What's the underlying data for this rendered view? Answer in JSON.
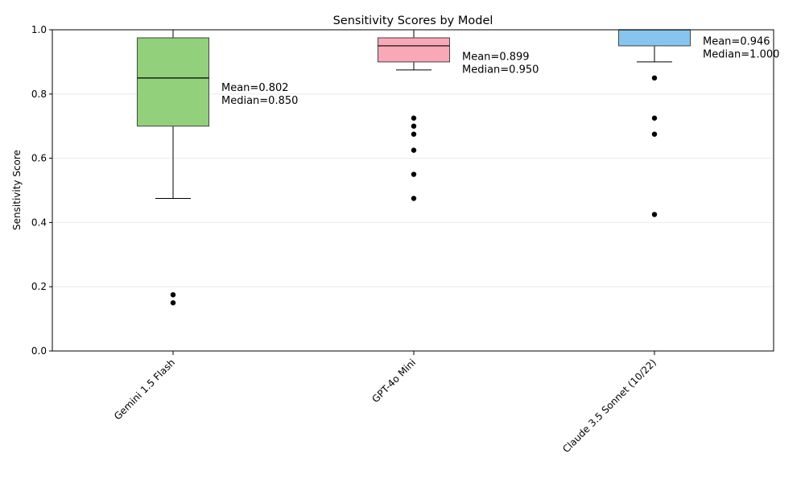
{
  "chart_data": {
    "type": "box",
    "title": "Sensitivity Scores by Model",
    "xlabel": "",
    "ylabel": "Sensitivity Score",
    "ylim": [
      0,
      1
    ],
    "yticks": [
      "0.0",
      "0.2",
      "0.4",
      "0.6",
      "0.8",
      "1.0"
    ],
    "grid": "horizontal",
    "series": [
      {
        "category": "Gemini 1.5 Flash",
        "color": "#93d07c",
        "q1": 0.7,
        "median": 0.85,
        "q3": 0.975,
        "whisker_low": 0.475,
        "whisker_high": 1.0,
        "outliers": [
          0.175,
          0.15
        ],
        "annotation": [
          "Mean=0.802",
          "Median=0.850"
        ],
        "mean": 0.802
      },
      {
        "category": "GPT-4o Mini",
        "color": "#f9a8b8",
        "q1": 0.9,
        "median": 0.95,
        "q3": 0.975,
        "whisker_low": 0.875,
        "whisker_high": 1.0,
        "outliers": [
          0.725,
          0.7,
          0.675,
          0.625,
          0.55,
          0.475
        ],
        "annotation": [
          "Mean=0.899",
          "Median=0.950"
        ],
        "mean": 0.899
      },
      {
        "category": "Claude 3.5 Sonnet (10/22)",
        "color": "#87c5ee",
        "q1": 0.95,
        "median": 1.0,
        "q3": 1.0,
        "whisker_low": 0.9,
        "whisker_high": 1.0,
        "outliers": [
          0.85,
          0.725,
          0.675,
          0.425
        ],
        "annotation": [
          "Mean=0.946",
          "Median=1.000"
        ],
        "mean": 0.946
      }
    ]
  }
}
